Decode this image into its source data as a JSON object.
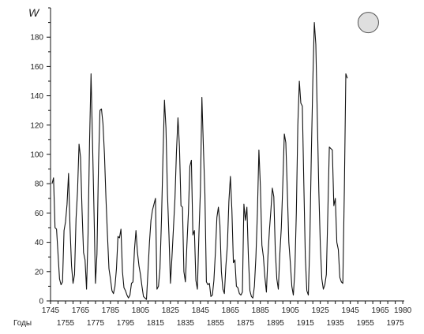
{
  "chart_data": {
    "type": "line",
    "ylabel": "W",
    "x_prefix_label": "Годы",
    "ylim": [
      0,
      200
    ],
    "xlim": [
      1745,
      1981
    ],
    "y_ticks": [
      0,
      20,
      40,
      60,
      80,
      100,
      120,
      140,
      160,
      180
    ],
    "x_ticks_top": [
      1745,
      1765,
      1785,
      1805,
      1825,
      1845,
      1865,
      1885,
      1905,
      1925,
      1945,
      1965,
      1980
    ],
    "x_ticks_bottom": [
      1755,
      1775,
      1795,
      1815,
      1835,
      1855,
      1875,
      1895,
      1915,
      1935,
      1955,
      1975
    ],
    "grid": false,
    "highlight": {
      "x": 1957,
      "y": 190
    },
    "series": [
      {
        "values": [
          [
            1746,
            80
          ],
          [
            1747,
            84
          ],
          [
            1748,
            50
          ],
          [
            1749,
            49
          ],
          [
            1750,
            32
          ],
          [
            1751,
            15
          ],
          [
            1752,
            11
          ],
          [
            1753,
            13
          ],
          [
            1754,
            48
          ],
          [
            1755,
            54
          ],
          [
            1756,
            66
          ],
          [
            1757,
            87
          ],
          [
            1758,
            50
          ],
          [
            1759,
            24
          ],
          [
            1760,
            12
          ],
          [
            1761,
            18
          ],
          [
            1762,
            56
          ],
          [
            1763,
            75
          ],
          [
            1764,
            107
          ],
          [
            1765,
            98
          ],
          [
            1766,
            62
          ],
          [
            1767,
            33
          ],
          [
            1768,
            28
          ],
          [
            1769,
            8
          ],
          [
            1770,
            45
          ],
          [
            1771,
            108
          ],
          [
            1772,
            155
          ],
          [
            1773,
            108
          ],
          [
            1774,
            60
          ],
          [
            1775,
            12
          ],
          [
            1776,
            32
          ],
          [
            1777,
            92
          ],
          [
            1778,
            130
          ],
          [
            1779,
            131
          ],
          [
            1780,
            121
          ],
          [
            1781,
            100
          ],
          [
            1782,
            70
          ],
          [
            1783,
            45
          ],
          [
            1784,
            22
          ],
          [
            1785,
            15
          ],
          [
            1786,
            7
          ],
          [
            1787,
            5
          ],
          [
            1788,
            10
          ],
          [
            1789,
            22
          ],
          [
            1790,
            44
          ],
          [
            1791,
            43
          ],
          [
            1792,
            49
          ],
          [
            1793,
            20
          ],
          [
            1794,
            9
          ],
          [
            1795,
            7
          ],
          [
            1796,
            4
          ],
          [
            1797,
            2
          ],
          [
            1798,
            4
          ],
          [
            1799,
            12
          ],
          [
            1800,
            13
          ],
          [
            1801,
            35
          ],
          [
            1802,
            48
          ],
          [
            1803,
            33
          ],
          [
            1804,
            24
          ],
          [
            1805,
            18
          ],
          [
            1806,
            10
          ],
          [
            1807,
            3
          ],
          [
            1808,
            2
          ],
          [
            1809,
            1
          ],
          [
            1810,
            20
          ],
          [
            1811,
            40
          ],
          [
            1812,
            55
          ],
          [
            1813,
            62
          ],
          [
            1814,
            66
          ],
          [
            1815,
            70
          ],
          [
            1816,
            8
          ],
          [
            1817,
            10
          ],
          [
            1818,
            22
          ],
          [
            1819,
            55
          ],
          [
            1820,
            98
          ],
          [
            1821,
            137
          ],
          [
            1822,
            118
          ],
          [
            1823,
            73
          ],
          [
            1824,
            45
          ],
          [
            1825,
            12
          ],
          [
            1826,
            30
          ],
          [
            1827,
            50
          ],
          [
            1828,
            70
          ],
          [
            1829,
            102
          ],
          [
            1830,
            125
          ],
          [
            1831,
            105
          ],
          [
            1832,
            65
          ],
          [
            1833,
            64
          ],
          [
            1834,
            20
          ],
          [
            1835,
            13
          ],
          [
            1836,
            38
          ],
          [
            1837,
            60
          ],
          [
            1838,
            92
          ],
          [
            1839,
            96
          ],
          [
            1840,
            45
          ],
          [
            1841,
            48
          ],
          [
            1842,
            14
          ],
          [
            1843,
            8
          ],
          [
            1844,
            45
          ],
          [
            1845,
            75
          ],
          [
            1846,
            139
          ],
          [
            1847,
            105
          ],
          [
            1848,
            73
          ],
          [
            1849,
            13
          ],
          [
            1850,
            11
          ],
          [
            1851,
            12
          ],
          [
            1852,
            3
          ],
          [
            1853,
            4
          ],
          [
            1854,
            14
          ],
          [
            1855,
            33
          ],
          [
            1856,
            57
          ],
          [
            1857,
            64
          ],
          [
            1858,
            52
          ],
          [
            1859,
            20
          ],
          [
            1860,
            8
          ],
          [
            1861,
            5
          ],
          [
            1862,
            24
          ],
          [
            1863,
            38
          ],
          [
            1864,
            68
          ],
          [
            1865,
            85
          ],
          [
            1866,
            62
          ],
          [
            1867,
            26
          ],
          [
            1868,
            28
          ],
          [
            1869,
            10
          ],
          [
            1870,
            9
          ],
          [
            1871,
            5
          ],
          [
            1872,
            4
          ],
          [
            1873,
            6
          ],
          [
            1874,
            66
          ],
          [
            1875,
            55
          ],
          [
            1876,
            64
          ],
          [
            1877,
            30
          ],
          [
            1878,
            7
          ],
          [
            1879,
            3
          ],
          [
            1880,
            2
          ],
          [
            1881,
            10
          ],
          [
            1882,
            30
          ],
          [
            1883,
            60
          ],
          [
            1884,
            103
          ],
          [
            1885,
            78
          ],
          [
            1886,
            38
          ],
          [
            1887,
            30
          ],
          [
            1888,
            16
          ],
          [
            1889,
            6
          ],
          [
            1890,
            30
          ],
          [
            1891,
            48
          ],
          [
            1892,
            62
          ],
          [
            1893,
            77
          ],
          [
            1894,
            71
          ],
          [
            1895,
            34
          ],
          [
            1896,
            15
          ],
          [
            1897,
            8
          ],
          [
            1898,
            32
          ],
          [
            1899,
            50
          ],
          [
            1900,
            80
          ],
          [
            1901,
            114
          ],
          [
            1902,
            108
          ],
          [
            1903,
            75
          ],
          [
            1904,
            40
          ],
          [
            1905,
            26
          ],
          [
            1906,
            10
          ],
          [
            1907,
            4
          ],
          [
            1908,
            20
          ],
          [
            1909,
            60
          ],
          [
            1910,
            120
          ],
          [
            1911,
            150
          ],
          [
            1912,
            135
          ],
          [
            1913,
            133
          ],
          [
            1914,
            80
          ],
          [
            1915,
            30
          ],
          [
            1916,
            7
          ],
          [
            1917,
            4
          ],
          [
            1918,
            40
          ],
          [
            1919,
            100
          ],
          [
            1920,
            150
          ],
          [
            1921,
            190
          ],
          [
            1922,
            175
          ],
          [
            1923,
            125
          ],
          [
            1924,
            75
          ],
          [
            1925,
            38
          ],
          [
            1926,
            15
          ],
          [
            1927,
            8
          ],
          [
            1928,
            11
          ],
          [
            1929,
            18
          ],
          [
            1930,
            60
          ],
          [
            1931,
            105
          ],
          [
            1932,
            104
          ],
          [
            1933,
            103
          ],
          [
            1934,
            65
          ],
          [
            1935,
            70
          ],
          [
            1936,
            40
          ],
          [
            1937,
            35
          ],
          [
            1938,
            16
          ],
          [
            1939,
            13
          ],
          [
            1940,
            12
          ],
          [
            1941,
            75
          ],
          [
            1942,
            155
          ],
          [
            1943,
            152
          ]
        ]
      }
    ]
  }
}
